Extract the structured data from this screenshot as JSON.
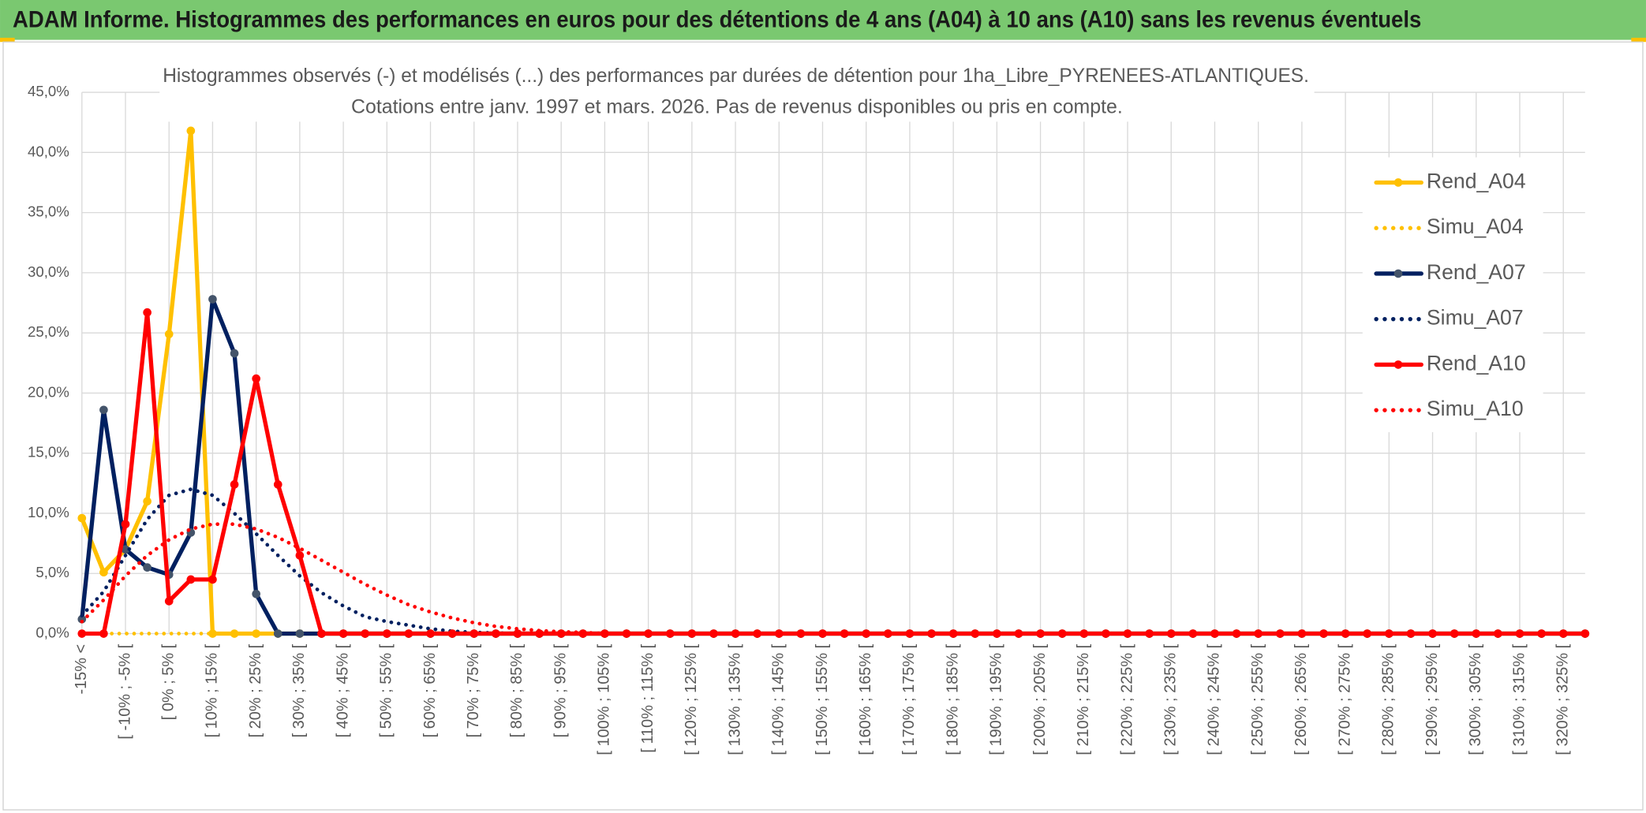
{
  "chart_data": {
    "type": "line",
    "title": "ADAM Informe. Histogrammes des performances en euros pour des détentions de 4 ans (A04) à 10 ans (A10) sans les revenus éventuels",
    "subtitle": [
      "Histogrammes observés (-) et modélisés (...) des performances par durées de détention pour 1ha_Libre_PYRENEES-ATLANTIQUES.",
      "Cotations entre janv. 1997 et mars. 2026. Pas de revenus disponibles ou pris en compte."
    ],
    "categories": [
      "-15% <",
      null,
      "[ -10% ; -5% [",
      null,
      "[ 0% ; 5% [",
      null,
      "[ 10% ; 15% [",
      null,
      "[ 20% ; 25% [",
      null,
      "[ 30% ; 35% [",
      null,
      "[ 40% ; 45% [",
      null,
      "[ 50% ; 55% [",
      null,
      "[ 60% ; 65% [",
      null,
      "[ 70% ; 75% [",
      null,
      "[ 80% ; 85% [",
      null,
      "[ 90% ; 95% [",
      null,
      "[ 100% ; 105% [",
      null,
      "[ 110% ; 115% [",
      null,
      "[ 120% ; 125% [",
      null,
      "[ 130% ; 135% [",
      null,
      "[ 140% ; 145% [",
      null,
      "[ 150% ; 155% [",
      null,
      "[ 160% ; 165% [",
      null,
      "[ 170% ; 175% [",
      null,
      "[ 180% ; 185% [",
      null,
      "[ 190% ; 195% [",
      null,
      "[ 200% ; 205% [",
      null,
      "[ 210% ; 215% [",
      null,
      "[ 220% ; 225% [",
      null,
      "[ 230% ; 235% [",
      null,
      "[ 240% ; 245% [",
      null,
      "[ 250% ; 255% [",
      null,
      "[ 260% ; 265% [",
      null,
      "[ 270% ; 275% [",
      null,
      "[ 280% ; 285% [",
      null,
      "[ 290% ; 295% [",
      null,
      "[ 300% ; 305% [",
      null,
      "[ 310% ; 315% [",
      null,
      "[ 320% ; 325% [",
      null
    ],
    "series": [
      {
        "name": "Rend_A04",
        "color": "#ffc000",
        "line_style": "solid",
        "marker_color": "#ffc000",
        "values": [
          9.6,
          5.1,
          7.0,
          11.0,
          24.9,
          41.8,
          0,
          0,
          0,
          0,
          0,
          0,
          0,
          0,
          0,
          0,
          0,
          0,
          0,
          0,
          0,
          0,
          0,
          0,
          0,
          0,
          0,
          0,
          0,
          0,
          0,
          0,
          0,
          0,
          0,
          0,
          0,
          0,
          0,
          0,
          0,
          0,
          0,
          0,
          0,
          0,
          0,
          0,
          0,
          0,
          0,
          0,
          0,
          0,
          0,
          0,
          0,
          0,
          0,
          0,
          0,
          0,
          0,
          0,
          0,
          0,
          0,
          0,
          0,
          0
        ]
      },
      {
        "name": "Simu_A04",
        "color": "#ffc000",
        "line_style": "dotted",
        "values": [
          0,
          0,
          0,
          0,
          0,
          0,
          0,
          0,
          0,
          0,
          0,
          0,
          0,
          0,
          0,
          0,
          0,
          0,
          0,
          0,
          0,
          0,
          0,
          0,
          0,
          0,
          0,
          0,
          0,
          0,
          0,
          0,
          0,
          0,
          0,
          0,
          0,
          0,
          0,
          0,
          0,
          0,
          0,
          0,
          0,
          0,
          0,
          0,
          0,
          0,
          0,
          0,
          0,
          0,
          0,
          0,
          0,
          0,
          0,
          0,
          0,
          0,
          0,
          0,
          0,
          0,
          0,
          0,
          0,
          0
        ]
      },
      {
        "name": "Rend_A07",
        "color": "#002060",
        "line_style": "solid",
        "marker_color": "#44546a",
        "values": [
          1.2,
          18.6,
          7.0,
          5.5,
          4.9,
          8.4,
          27.8,
          23.3,
          3.3,
          0,
          0,
          0,
          0,
          0,
          0,
          0,
          0,
          0,
          0,
          0,
          0,
          0,
          0,
          0,
          0,
          0,
          0,
          0,
          0,
          0,
          0,
          0,
          0,
          0,
          0,
          0,
          0,
          0,
          0,
          0,
          0,
          0,
          0,
          0,
          0,
          0,
          0,
          0,
          0,
          0,
          0,
          0,
          0,
          0,
          0,
          0,
          0,
          0,
          0,
          0,
          0,
          0,
          0,
          0,
          0,
          0,
          0,
          0,
          0,
          0
        ]
      },
      {
        "name": "Simu_A07",
        "color": "#002060",
        "line_style": "dotted",
        "values": [
          1.5,
          3.5,
          6.5,
          9.5,
          11.5,
          12.0,
          11.5,
          10.0,
          8.3,
          6.5,
          4.8,
          3.4,
          2.3,
          1.4,
          1.0,
          0.7,
          0.4,
          0.2,
          0.1,
          0.05,
          0,
          0,
          0,
          0,
          0,
          0,
          0,
          0,
          0,
          0,
          0,
          0,
          0,
          0,
          0,
          0,
          0,
          0,
          0,
          0,
          0,
          0,
          0,
          0,
          0,
          0,
          0,
          0,
          0,
          0,
          0,
          0,
          0,
          0,
          0,
          0,
          0,
          0,
          0,
          0,
          0,
          0,
          0,
          0,
          0,
          0,
          0,
          0,
          0,
          0
        ]
      },
      {
        "name": "Rend_A10",
        "color": "#ff0000",
        "line_style": "solid",
        "marker_color": "#ff0000",
        "values": [
          0,
          0,
          9.1,
          26.7,
          2.7,
          4.5,
          4.5,
          12.4,
          21.2,
          12.4,
          6.5,
          0,
          0,
          0,
          0,
          0,
          0,
          0,
          0,
          0,
          0,
          0,
          0,
          0,
          0,
          0,
          0,
          0,
          0,
          0,
          0,
          0,
          0,
          0,
          0,
          0,
          0,
          0,
          0,
          0,
          0,
          0,
          0,
          0,
          0,
          0,
          0,
          0,
          0,
          0,
          0,
          0,
          0,
          0,
          0,
          0,
          0,
          0,
          0,
          0,
          0,
          0,
          0,
          0,
          0,
          0,
          0,
          0,
          0,
          0
        ]
      },
      {
        "name": "Simu_A10",
        "color": "#ff0000",
        "line_style": "dotted",
        "values": [
          1.0,
          2.8,
          4.8,
          6.5,
          7.8,
          8.7,
          9.1,
          9.1,
          8.7,
          8.0,
          7.1,
          6.1,
          5.1,
          4.1,
          3.2,
          2.4,
          1.8,
          1.3,
          0.9,
          0.6,
          0.4,
          0.25,
          0.15,
          0.1,
          0,
          0,
          0,
          0,
          0,
          0,
          0,
          0,
          0,
          0,
          0,
          0,
          0,
          0,
          0,
          0,
          0,
          0,
          0,
          0,
          0,
          0,
          0,
          0,
          0,
          0,
          0,
          0,
          0,
          0,
          0,
          0,
          0,
          0,
          0,
          0,
          0,
          0,
          0,
          0,
          0,
          0,
          0,
          0,
          0,
          0
        ]
      }
    ],
    "ylim": [
      0,
      45
    ],
    "yticks": [
      {
        "value": 0,
        "label": "0,0%"
      },
      {
        "value": 5,
        "label": "5,0%"
      },
      {
        "value": 10,
        "label": "10,0%"
      },
      {
        "value": 15,
        "label": "15,0%"
      },
      {
        "value": 20,
        "label": "20,0%"
      },
      {
        "value": 25,
        "label": "25,0%"
      },
      {
        "value": 30,
        "label": "30,0%"
      },
      {
        "value": 35,
        "label": "35,0%"
      },
      {
        "value": 40,
        "label": "40,0%"
      },
      {
        "value": 45,
        "label": "45,0%"
      }
    ],
    "grid": true,
    "legend": "right"
  }
}
